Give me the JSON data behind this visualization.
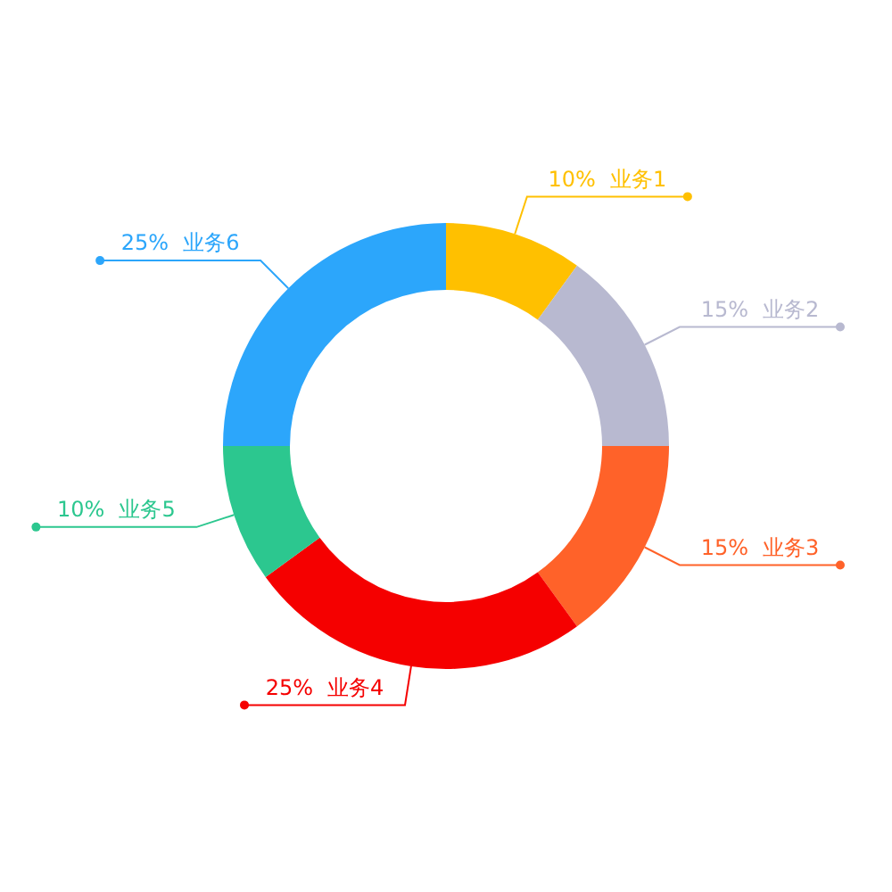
{
  "chart_data": {
    "type": "donut",
    "categories": [
      "业务1",
      "业务2",
      "业务3",
      "业务4",
      "业务5",
      "业务6"
    ],
    "values": [
      10,
      15,
      15,
      25,
      10,
      25
    ],
    "colors": [
      "#ffc000",
      "#b8b9d0",
      "#ff6229",
      "#f50000",
      "#2cc78f",
      "#2ca6fb"
    ],
    "value_labels": [
      "10%",
      "15%",
      "15%",
      "25%",
      "10%",
      "25%"
    ],
    "legend": false
  }
}
